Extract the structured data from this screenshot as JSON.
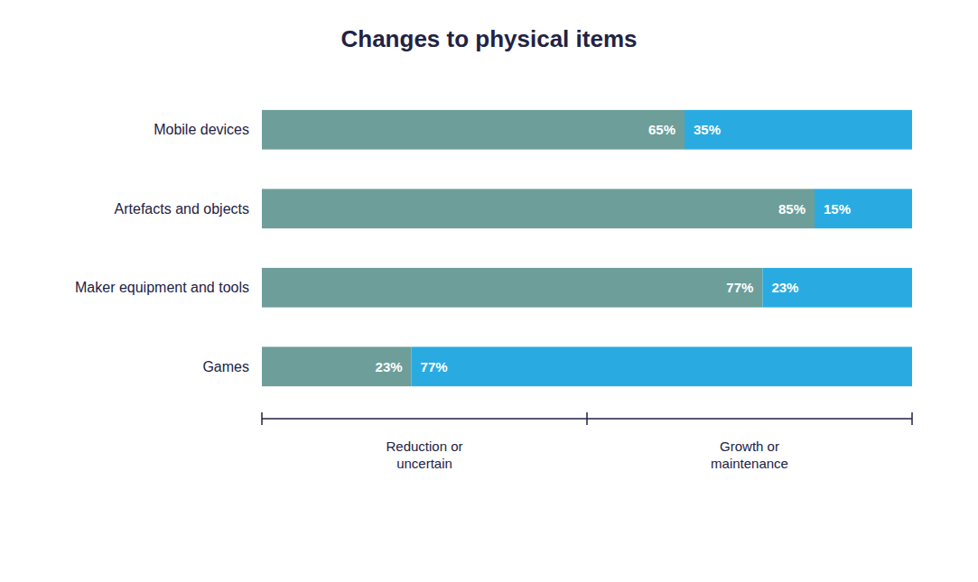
{
  "chart_data": {
    "type": "bar",
    "orientation": "horizontal",
    "stacked": true,
    "title": "Changes to physical items",
    "categories": [
      "Mobile devices",
      "Artefacts and objects",
      "Maker equipment and tools",
      "Games"
    ],
    "series": [
      {
        "color": "#6d9e9a",
        "values": [
          65,
          85,
          77,
          23
        ],
        "value_labels": [
          "65%",
          "85%",
          "77%",
          "23%"
        ]
      },
      {
        "color": "#29abe2",
        "values": [
          35,
          15,
          23,
          77
        ],
        "value_labels": [
          "35%",
          "15%",
          "23%",
          "77%"
        ]
      }
    ],
    "data_labels": true,
    "xlim": [
      0,
      100
    ],
    "xticks": [
      0,
      50,
      100
    ],
    "tick_labels": "y",
    "grid": false,
    "annotations": [
      {
        "text": "Reduction or\nuncertain",
        "x": 25
      },
      {
        "text": "Growth or\nmaintenance",
        "x": 75
      }
    ]
  }
}
